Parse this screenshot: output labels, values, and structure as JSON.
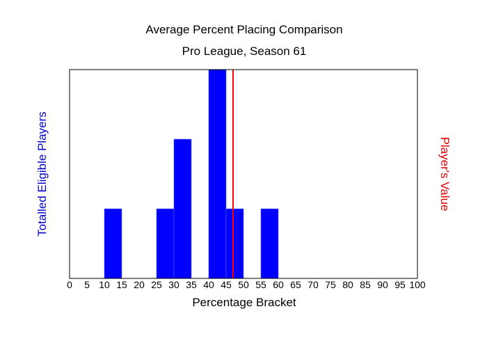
{
  "chart_data": {
    "type": "bar",
    "title": "Average Percent Placing Comparison",
    "subtitle": "Pro League, Season 61",
    "xlabel": "Percentage Bracket",
    "ylabel": "Totalled Eligible Players",
    "y2label": "Player's Value",
    "xlim": [
      0,
      100
    ],
    "ylim": [
      0,
      3
    ],
    "x_ticks": [
      "0",
      "5",
      "10",
      "15",
      "20",
      "25",
      "30",
      "35",
      "40",
      "45",
      "50",
      "55",
      "60",
      "65",
      "70",
      "75",
      "80",
      "85",
      "90",
      "95",
      "100"
    ],
    "bin_width": 5,
    "bins": [
      {
        "start": 10,
        "end": 15,
        "count": 1
      },
      {
        "start": 25,
        "end": 30,
        "count": 1
      },
      {
        "start": 30,
        "end": 35,
        "count": 2
      },
      {
        "start": 40,
        "end": 45,
        "count": 3
      },
      {
        "start": 45,
        "end": 50,
        "count": 1
      },
      {
        "start": 55,
        "end": 60,
        "count": 1
      }
    ],
    "player_value": 47,
    "grid": false,
    "colors": {
      "bars": "#0000ff",
      "player_line": "#ff0000",
      "ylabel": "#0000cc",
      "y2label": "#dd0000"
    }
  }
}
